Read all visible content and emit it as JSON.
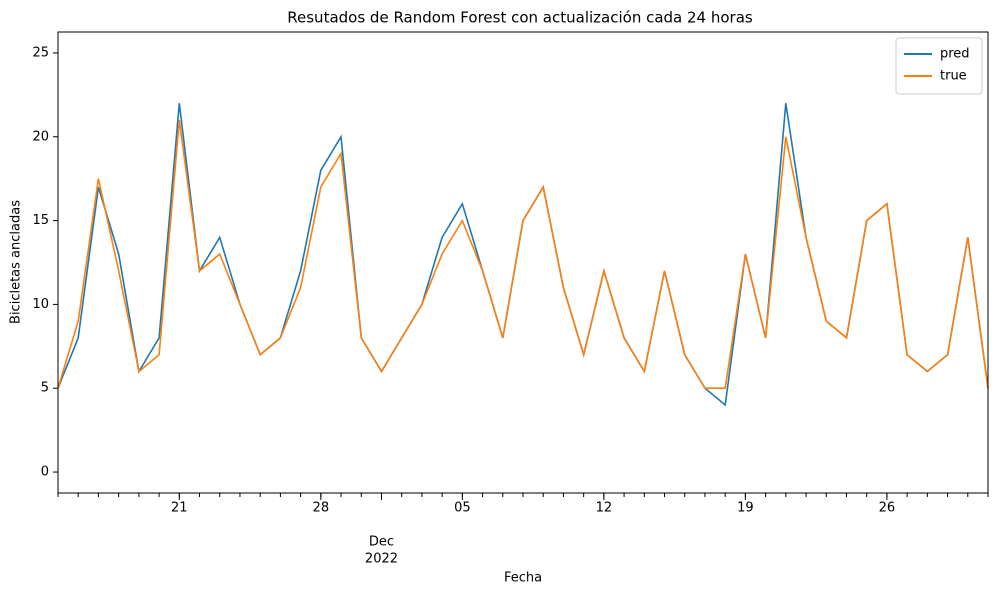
{
  "chart_data": {
    "type": "line",
    "title": "Resutados de Random Forest con actualización cada 24 horas",
    "xlabel": "Fecha",
    "ylabel": "Bicicletas ancladas",
    "x": [
      "2022-11-15",
      "2022-11-16",
      "2022-11-17",
      "2022-11-18",
      "2022-11-19",
      "2022-11-20",
      "2022-11-21",
      "2022-11-22",
      "2022-11-23",
      "2022-11-24",
      "2022-11-25",
      "2022-11-26",
      "2022-11-27",
      "2022-11-28",
      "2022-11-29",
      "2022-11-30",
      "2022-12-01",
      "2022-12-02",
      "2022-12-03",
      "2022-12-04",
      "2022-12-05",
      "2022-12-06",
      "2022-12-07",
      "2022-12-08",
      "2022-12-09",
      "2022-12-10",
      "2022-12-11",
      "2022-12-12",
      "2022-12-13",
      "2022-12-14",
      "2022-12-15",
      "2022-12-16",
      "2022-12-17",
      "2022-12-18",
      "2022-12-19",
      "2022-12-20",
      "2022-12-21",
      "2022-12-22",
      "2022-12-23",
      "2022-12-24",
      "2022-12-25",
      "2022-12-26",
      "2022-12-27",
      "2022-12-28",
      "2022-12-29",
      "2022-12-30",
      "2022-12-31"
    ],
    "series": [
      {
        "name": "pred",
        "color": "#1f77b4",
        "values": [
          5,
          8,
          17,
          13,
          6,
          8,
          22,
          12,
          14,
          10,
          7,
          8,
          12,
          18,
          20,
          8,
          6,
          8,
          10,
          14,
          16,
          12,
          8,
          15,
          17,
          11,
          7,
          12,
          8,
          6,
          12,
          7,
          5,
          4,
          13,
          8,
          22,
          14,
          9,
          8,
          15,
          16,
          7,
          6,
          7,
          14,
          5
        ]
      },
      {
        "name": "true",
        "color": "#ff7f0e",
        "values": [
          5,
          9,
          17.5,
          12,
          6,
          7,
          21,
          12,
          13,
          10,
          7,
          8,
          11,
          17,
          19,
          8,
          6,
          8,
          10,
          13,
          15,
          12,
          8,
          15,
          17,
          11,
          7,
          12,
          8,
          6,
          12,
          7,
          5,
          5,
          13,
          8,
          20,
          14,
          9,
          8,
          15,
          16,
          7,
          6,
          7,
          14,
          5
        ]
      }
    ],
    "xlim": [
      "2022-11-15",
      "2022-12-31"
    ],
    "xticks": [
      {
        "value": "2022-11-21",
        "label": "21"
      },
      {
        "value": "2022-11-28",
        "label": "28"
      },
      {
        "value": "2022-12-05",
        "label": "05"
      },
      {
        "value": "2022-12-12",
        "label": "12"
      },
      {
        "value": "2022-12-19",
        "label": "19"
      },
      {
        "value": "2022-12-26",
        "label": "26"
      }
    ],
    "x_month_ticks": [
      {
        "value": "2022-12-01",
        "label": "Dec"
      }
    ],
    "x_year_labels": [
      {
        "value": "2022-12-01",
        "label": "2022"
      }
    ],
    "ylim": [
      -1.25,
      26.25
    ],
    "yticks": [
      0,
      5,
      10,
      15,
      20,
      25
    ],
    "legend": "upper right"
  }
}
